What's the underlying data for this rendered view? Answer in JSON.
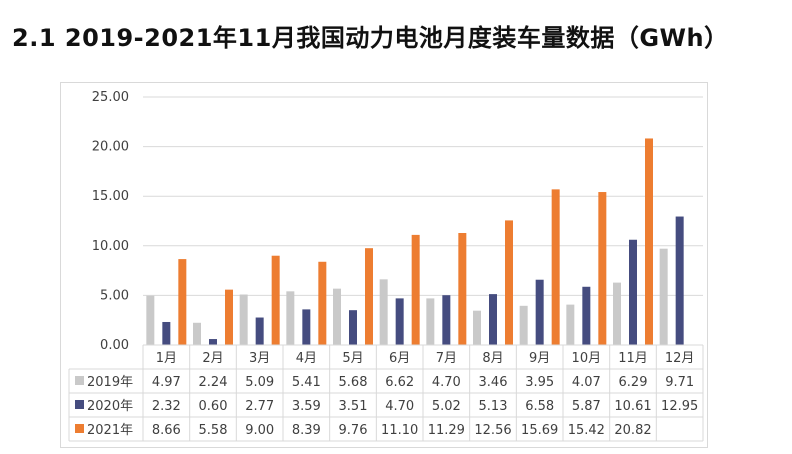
{
  "heading": "2.1 2019-2021年11月我国动力电池月度装车量数据（GWh）",
  "colors": {
    "s2019": "#c9c9c9",
    "s2020": "#454c7f",
    "s2021": "#ed7d31",
    "grid": "#d9d9d9",
    "text": "#404040"
  },
  "chart_data": {
    "type": "bar",
    "title": "",
    "xlabel": "",
    "ylabel": "",
    "ylim": [
      0,
      25
    ],
    "yticks": [
      "0.00",
      "5.00",
      "10.00",
      "15.00",
      "20.00",
      "25.00"
    ],
    "grid": true,
    "legend": "data-table-left",
    "categories": [
      "1月",
      "2月",
      "3月",
      "4月",
      "5月",
      "6月",
      "7月",
      "8月",
      "9月",
      "10月",
      "11月",
      "12月"
    ],
    "series": [
      {
        "name": "2019年",
        "values": [
          4.97,
          2.24,
          5.09,
          5.41,
          5.68,
          6.62,
          4.7,
          3.46,
          3.95,
          4.07,
          6.29,
          9.71
        ],
        "labels": [
          "4.97",
          "2.24",
          "5.09",
          "5.41",
          "5.68",
          "6.62",
          "4.70",
          "3.46",
          "3.95",
          "4.07",
          "6.29",
          "9.71"
        ]
      },
      {
        "name": "2020年",
        "values": [
          2.32,
          0.6,
          2.77,
          3.59,
          3.51,
          4.7,
          5.02,
          5.13,
          6.58,
          5.87,
          10.61,
          12.95
        ],
        "labels": [
          "2.32",
          "0.60",
          "2.77",
          "3.59",
          "3.51",
          "4.70",
          "5.02",
          "5.13",
          "6.58",
          "5.87",
          "10.61",
          "12.95"
        ]
      },
      {
        "name": "2021年",
        "values": [
          8.66,
          5.58,
          9.0,
          8.39,
          9.76,
          11.1,
          11.29,
          12.56,
          15.69,
          15.42,
          20.82,
          null
        ],
        "labels": [
          "8.66",
          "5.58",
          "9.00",
          "8.39",
          "9.76",
          "11.10",
          "11.29",
          "12.56",
          "15.69",
          "15.42",
          "20.82",
          ""
        ]
      }
    ]
  }
}
